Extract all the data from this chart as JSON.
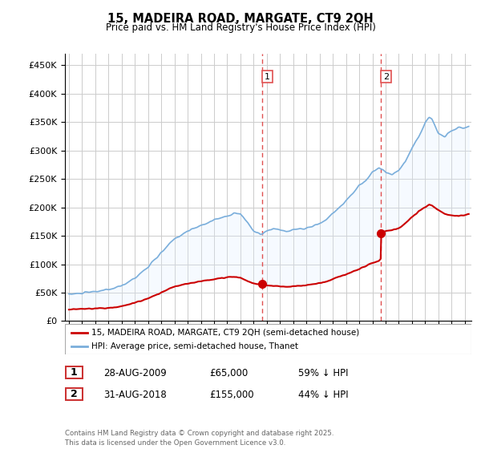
{
  "title": "15, MADEIRA ROAD, MARGATE, CT9 2QH",
  "subtitle": "Price paid vs. HM Land Registry's House Price Index (HPI)",
  "ylabel_ticks": [
    "£0",
    "£50K",
    "£100K",
    "£150K",
    "£200K",
    "£250K",
    "£300K",
    "£350K",
    "£400K",
    "£450K"
  ],
  "ytick_values": [
    0,
    50000,
    100000,
    150000,
    200000,
    250000,
    300000,
    350000,
    400000,
    450000
  ],
  "ylim": [
    0,
    470000
  ],
  "xlim_start": 1994.7,
  "xlim_end": 2025.5,
  "sale1_x": 2009.66,
  "sale1_y": 65000,
  "sale2_x": 2018.66,
  "sale2_y": 155000,
  "vline1_x": 2009.66,
  "vline2_x": 2018.66,
  "red_line_color": "#cc0000",
  "blue_line_color": "#7aaedb",
  "fill_color": "#ddeeff",
  "vline_color": "#e05050",
  "grid_color": "#cccccc",
  "background_color": "#ffffff",
  "legend_label_red": "15, MADEIRA ROAD, MARGATE, CT9 2QH (semi-detached house)",
  "legend_label_blue": "HPI: Average price, semi-detached house, Thanet",
  "table_row1": [
    "1",
    "28-AUG-2009",
    "£65,000",
    "59% ↓ HPI"
  ],
  "table_row2": [
    "2",
    "31-AUG-2018",
    "£155,000",
    "44% ↓ HPI"
  ],
  "footer_text": "Contains HM Land Registry data © Crown copyright and database right 2025.\nThis data is licensed under the Open Government Licence v3.0."
}
